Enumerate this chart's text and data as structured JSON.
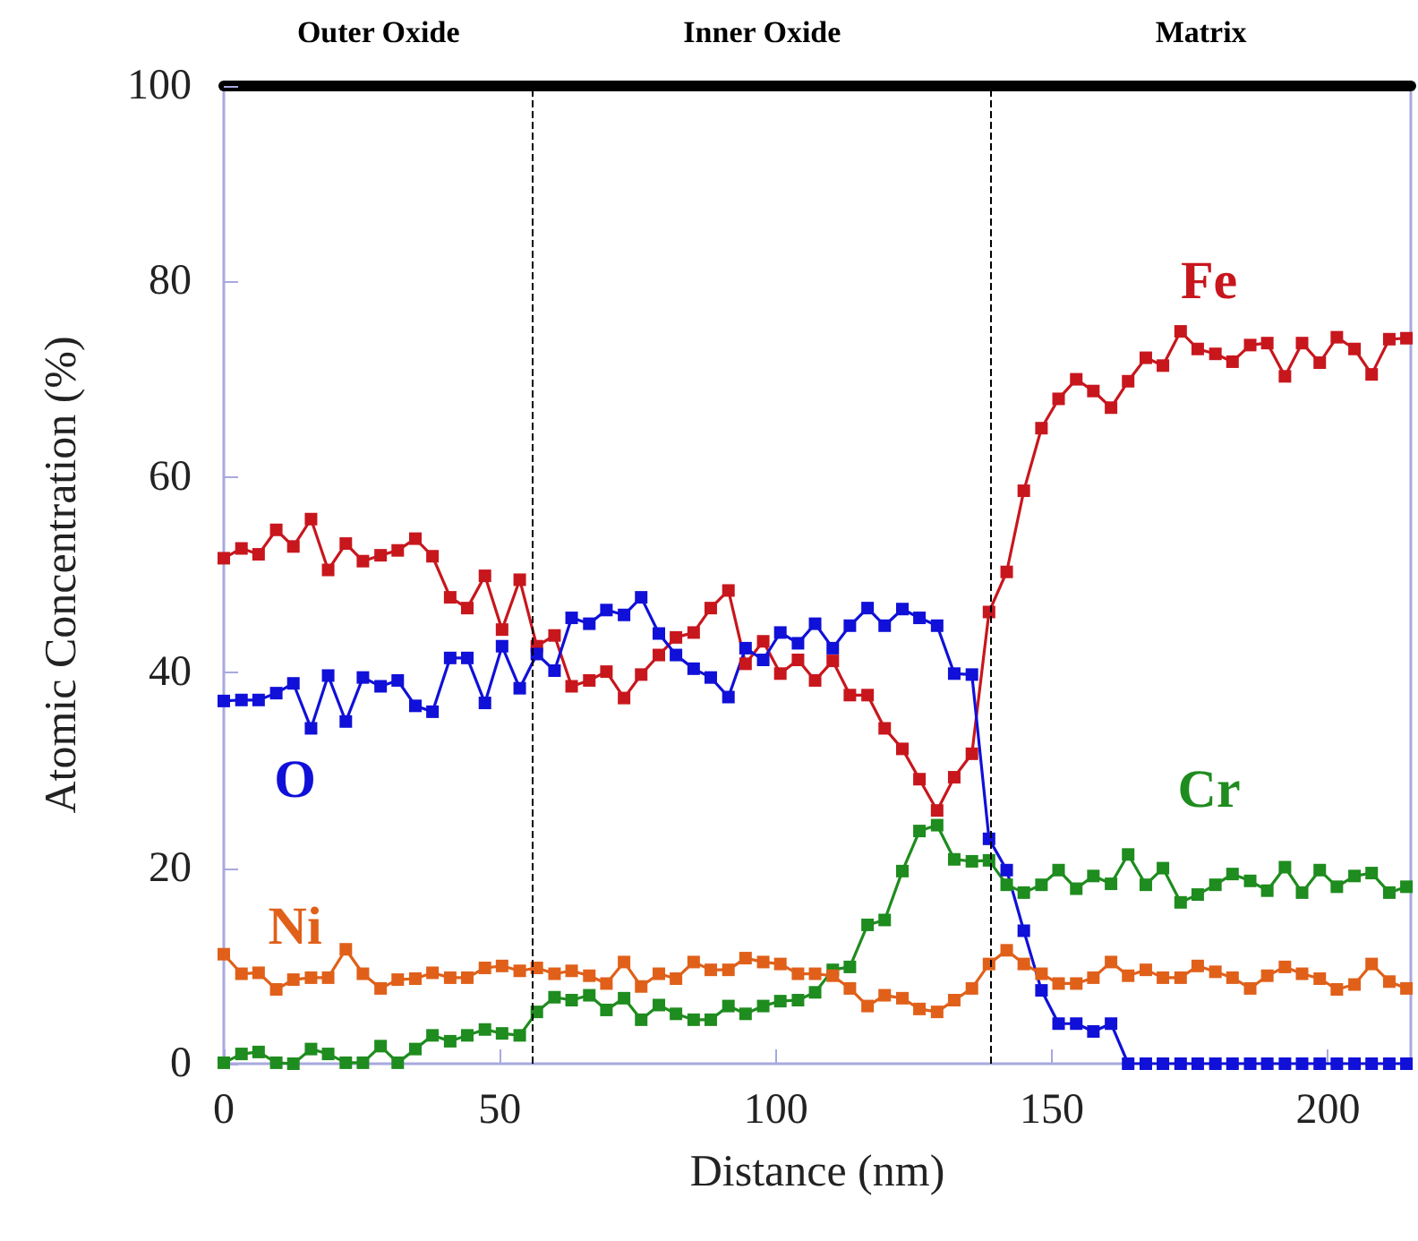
{
  "chart_data": {
    "type": "line",
    "xlabel": "Distance (nm)",
    "ylabel": "Atomic Concentration (%)",
    "x": [
      0,
      3.2,
      6.3,
      9.5,
      12.6,
      15.8,
      18.9,
      22.1,
      25.2,
      28.4,
      31.5,
      34.7,
      37.8,
      41,
      44.1,
      47.3,
      50.4,
      53.6,
      56.7,
      59.9,
      63,
      66.2,
      69.3,
      72.5,
      75.6,
      78.8,
      81.9,
      85.1,
      88.2,
      91.4,
      94.5,
      97.7,
      100.8,
      104,
      107.1,
      110.3,
      113.4,
      116.6,
      119.7,
      122.9,
      126,
      129.2,
      132.3,
      135.5,
      138.6,
      141.8,
      144.9,
      148.1,
      151.2,
      154.4,
      157.5,
      160.7,
      163.8,
      167,
      170.1,
      173.3,
      176.4,
      179.6,
      182.7,
      185.9,
      189,
      192.2,
      195.3,
      198.5,
      201.6,
      204.8,
      207.9,
      211.1,
      214.2
    ],
    "series": [
      {
        "name": "Fe",
        "color": "#c8161d",
        "values": [
          51.7,
          52.7,
          52.1,
          54.6,
          52.9,
          55.7,
          50.5,
          53.2,
          51.4,
          52,
          52.5,
          53.7,
          51.9,
          47.7,
          46.6,
          49.9,
          44.4,
          49.5,
          42.7,
          43.8,
          38.6,
          39.2,
          40.1,
          37.4,
          39.8,
          41.8,
          43.6,
          44.1,
          46.6,
          48.4,
          40.9,
          43.2,
          39.9,
          41.3,
          39.2,
          41.2,
          37.7,
          37.7,
          34.3,
          32.2,
          29.1,
          25.9,
          29.3,
          31.7,
          46.2,
          50.3,
          58.6,
          65.0,
          68.0,
          70.0,
          68.8,
          67.1,
          69.8,
          72.2,
          71.4,
          74.9,
          73.1,
          72.6,
          71.8,
          73.5,
          73.7,
          70.3,
          73.7,
          71.7,
          74.3,
          73.1,
          70.5,
          74.1,
          74.2
        ]
      },
      {
        "name": "O",
        "color": "#1010d8",
        "values": [
          37.1,
          37.2,
          37.2,
          37.9,
          38.9,
          34.3,
          39.7,
          35.0,
          39.5,
          38.6,
          39.2,
          36.6,
          36.0,
          41.5,
          41.5,
          36.9,
          42.7,
          38.4,
          41.9,
          40.2,
          45.6,
          45.0,
          46.4,
          45.9,
          47.7,
          44.0,
          41.8,
          40.4,
          39.5,
          37.5,
          42.5,
          41.3,
          44.1,
          43.0,
          45.0,
          42.5,
          44.8,
          46.6,
          44.8,
          46.5,
          45.6,
          44.8,
          39.9,
          39.8,
          23.0,
          19.8,
          13.6,
          7.5,
          4.1,
          4.1,
          3.3,
          4.1,
          0,
          0,
          0,
          0,
          0,
          0,
          0,
          0,
          0,
          0,
          0,
          0,
          0,
          0,
          0,
          0,
          0
        ]
      },
      {
        "name": "Cr",
        "color": "#1e8c1e",
        "values": [
          0.1,
          1.0,
          1.2,
          0.1,
          0,
          1.5,
          1.0,
          0.1,
          0.1,
          1.8,
          0.1,
          1.5,
          2.9,
          2.3,
          2.9,
          3.5,
          3.1,
          2.9,
          5.3,
          6.8,
          6.5,
          7.0,
          5.5,
          6.7,
          4.5,
          6.0,
          5.1,
          4.5,
          4.5,
          5.9,
          5.1,
          5.9,
          6.4,
          6.5,
          7.3,
          9.6,
          9.9,
          14.2,
          14.7,
          19.7,
          23.8,
          24.4,
          20.9,
          20.7,
          20.8,
          18.3,
          17.5,
          18.3,
          19.8,
          17.9,
          19.2,
          18.4,
          21.4,
          18.3,
          20.0,
          16.5,
          17.3,
          18.3,
          19.4,
          18.7,
          17.7,
          20.1,
          17.5,
          19.8,
          18.1,
          19.2,
          19.5,
          17.5,
          18.1
        ]
      },
      {
        "name": "Ni",
        "color": "#e0601a",
        "values": [
          11.2,
          9.2,
          9.3,
          7.6,
          8.6,
          8.8,
          8.8,
          11.7,
          9.2,
          7.7,
          8.6,
          8.7,
          9.3,
          8.8,
          8.8,
          9.8,
          10.0,
          9.5,
          9.8,
          9.2,
          9.5,
          9.0,
          8.2,
          10.4,
          7.9,
          9.2,
          8.7,
          10.4,
          9.6,
          9.6,
          10.8,
          10.4,
          10.2,
          9.2,
          9.2,
          9.0,
          7.7,
          5.9,
          7.0,
          6.7,
          5.6,
          5.3,
          6.5,
          7.7,
          10.2,
          11.6,
          10.2,
          9.2,
          8.2,
          8.2,
          8.8,
          10.4,
          9.0,
          9.6,
          8.8,
          8.8,
          10.0,
          9.4,
          8.8,
          7.7,
          9.0,
          9.9,
          9.2,
          8.7,
          7.6,
          8.1,
          10.2,
          8.4,
          7.7
        ]
      }
    ],
    "xlim": [
      0,
      215
    ],
    "xticks": [
      0,
      50,
      100,
      150,
      200
    ],
    "ylim": [
      0,
      100
    ],
    "yticks": [
      0,
      20,
      40,
      60,
      80,
      100
    ],
    "ref_lines": [
      {
        "axis": "x",
        "value": 56,
        "color": "#000000",
        "line_style": "dashed"
      },
      {
        "axis": "x",
        "value": 139,
        "color": "#000000",
        "line_style": "dashed"
      }
    ],
    "annotations": [
      "Outer Oxide",
      "Inner Oxide",
      "Matrix"
    ],
    "marker": "square",
    "line_style": "solid",
    "grid": false,
    "legend": false
  }
}
